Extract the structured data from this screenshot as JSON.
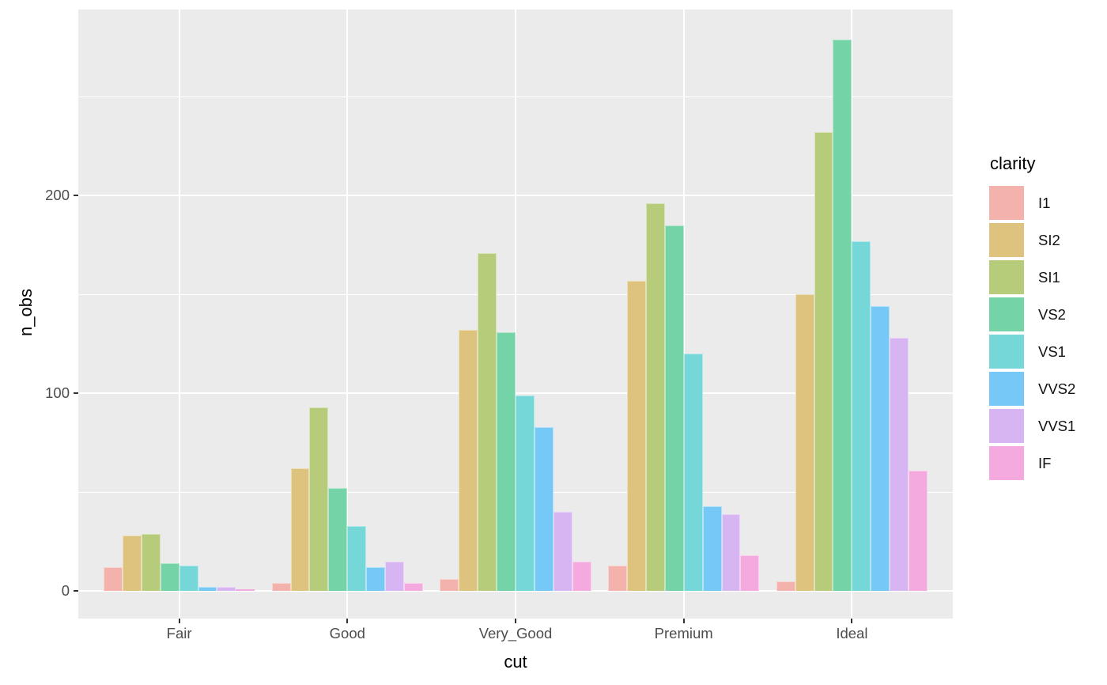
{
  "chart_data": {
    "type": "bar",
    "title": "",
    "xlabel": "cut",
    "ylabel": "n_obs",
    "legend_title": "clarity",
    "legend_position": "right",
    "grid": true,
    "categories": [
      "Fair",
      "Good",
      "Very_Good",
      "Premium",
      "Ideal"
    ],
    "series": [
      {
        "name": "I1",
        "color": "#F4B2AD",
        "values": [
          12,
          4,
          6,
          13,
          5
        ]
      },
      {
        "name": "SI2",
        "color": "#DDC37D",
        "values": [
          28,
          62,
          132,
          157,
          150
        ]
      },
      {
        "name": "SI1",
        "color": "#B6CC7A",
        "values": [
          29,
          93,
          171,
          196,
          232
        ]
      },
      {
        "name": "VS2",
        "color": "#75D4A7",
        "values": [
          14,
          52,
          131,
          185,
          279
        ]
      },
      {
        "name": "VS1",
        "color": "#76D7D9",
        "values": [
          13,
          33,
          99,
          120,
          177
        ]
      },
      {
        "name": "VVS2",
        "color": "#76C8F6",
        "values": [
          2,
          12,
          83,
          43,
          144
        ]
      },
      {
        "name": "VVS1",
        "color": "#D7B4F2",
        "values": [
          2,
          15,
          40,
          39,
          128
        ]
      },
      {
        "name": "IF",
        "color": "#F5AADF",
        "values": [
          1,
          4,
          15,
          18,
          61
        ]
      }
    ],
    "y_ticks": [
      0,
      100,
      200
    ],
    "y_tick_labels": [
      "0",
      "100",
      "200"
    ],
    "y_minor_ticks": [
      50,
      150,
      250
    ],
    "ylim": [
      -14,
      294
    ],
    "panel_bg": "#EBEBEB",
    "grid_color": "#FFFFFF",
    "axis_text_color": "#4D4D4D",
    "axis_title_color": "#000000",
    "tick_mark_color": "#333333"
  }
}
